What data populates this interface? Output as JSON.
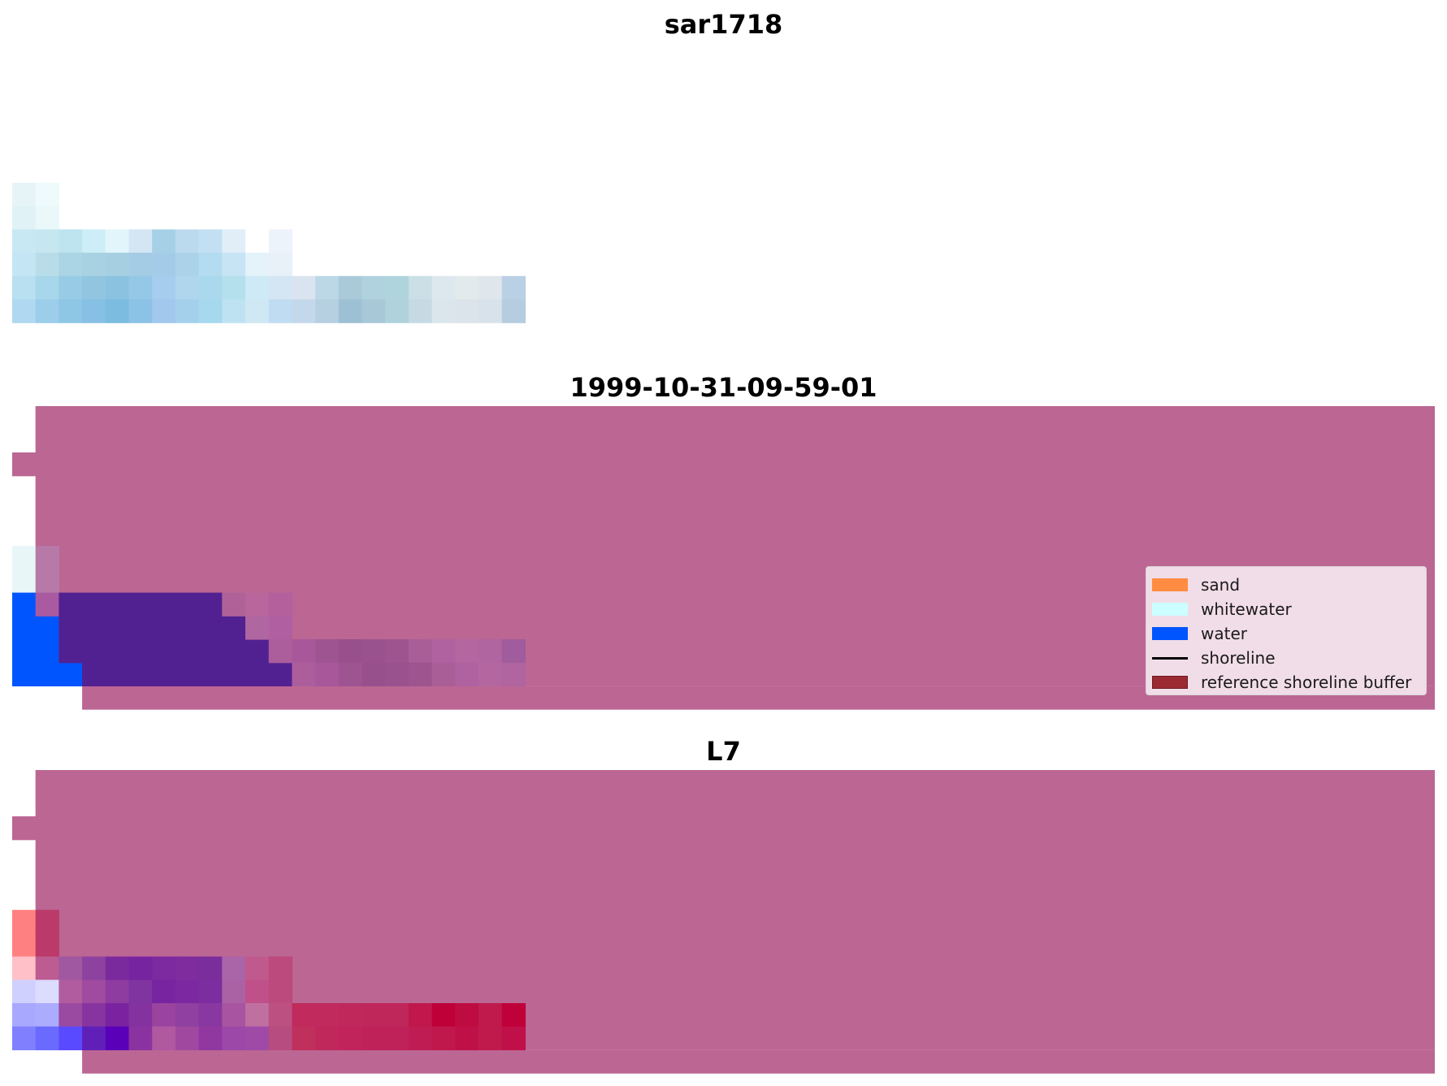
{
  "panels": [
    {
      "id": "sar",
      "title": "sar1718"
    },
    {
      "id": "classified",
      "title": "1999-10-31-09-59-01"
    },
    {
      "id": "l7",
      "title": "L7"
    }
  ],
  "legend": {
    "items": [
      {
        "label": "sand",
        "color": "#ff8c42",
        "kind": "patch"
      },
      {
        "label": "whitewater",
        "color": "#ccffff",
        "kind": "patch"
      },
      {
        "label": "water",
        "color": "#0055ff",
        "kind": "patch"
      },
      {
        "label": "shoreline",
        "color": "#000000",
        "kind": "line"
      },
      {
        "label": "reference shoreline buffer",
        "color": "#9b2a33",
        "kind": "patch"
      }
    ]
  },
  "colors": {
    "buffer_overlay": "#bc6694",
    "water": "#0055ff",
    "water_under_buffer": "#522191",
    "whitewater": "#e8f6f8"
  }
}
